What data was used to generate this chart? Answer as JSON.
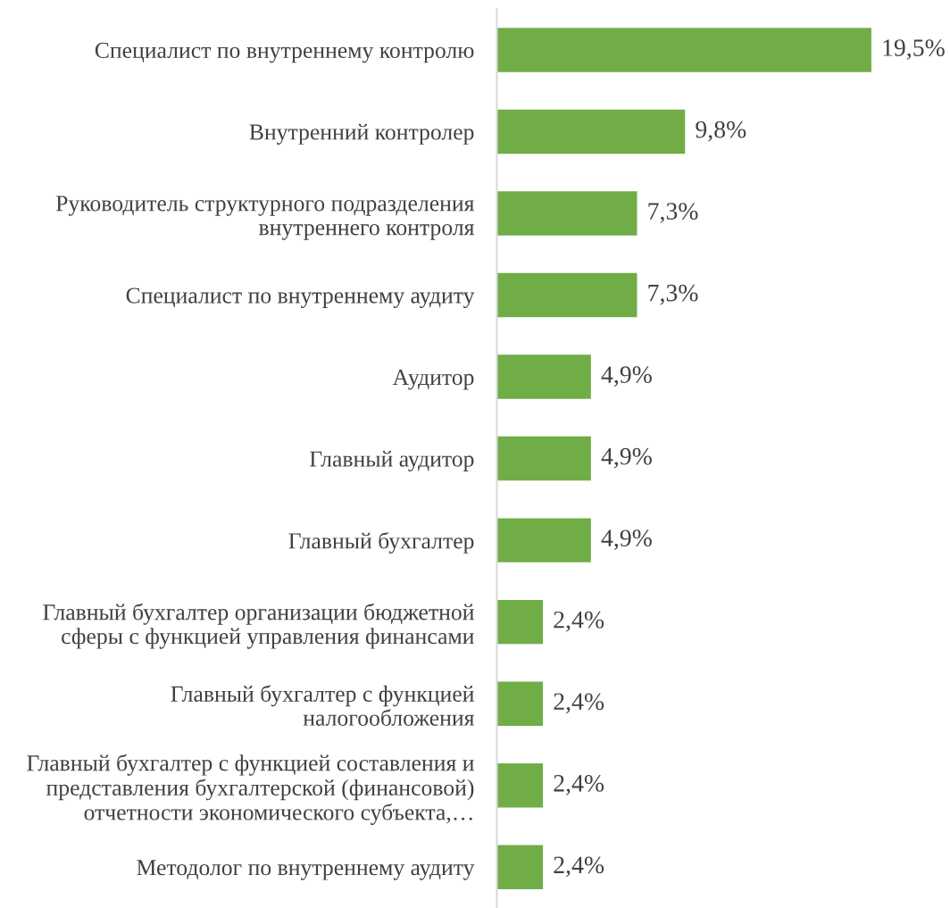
{
  "chart_data": {
    "type": "bar",
    "orientation": "horizontal",
    "categories": [
      "Специалист по внутреннему контролю",
      "Внутренний контролер",
      "Руководитель структурного подразделения\nвнутреннего контроля",
      "Специалист по внутреннему аудиту",
      "Аудитор",
      "Главный аудитор",
      "Главный бухгалтер",
      "Главный бухгалтер организации бюджетной\nсферы с функцией управления финансами",
      "Главный бухгалтер с функцией\nналогообложения",
      "Главный бухгалтер с функцией составления и\nпредставления бухгалтерской (финансовой)\nотчетности экономического субъекта,…",
      "Методолог по внутреннему аудиту"
    ],
    "values": [
      19.5,
      9.8,
      7.3,
      7.3,
      4.9,
      4.9,
      4.9,
      2.4,
      2.4,
      2.4,
      2.4
    ],
    "value_labels": [
      "19,5%",
      "9,8%",
      "7,3%",
      "7,3%",
      "4,9%",
      "4,9%",
      "4,9%",
      "2,4%",
      "2,4%",
      "2,4%",
      "2,4%"
    ],
    "color": "#70ad47",
    "tick_labels": "y",
    "grid": false
  }
}
